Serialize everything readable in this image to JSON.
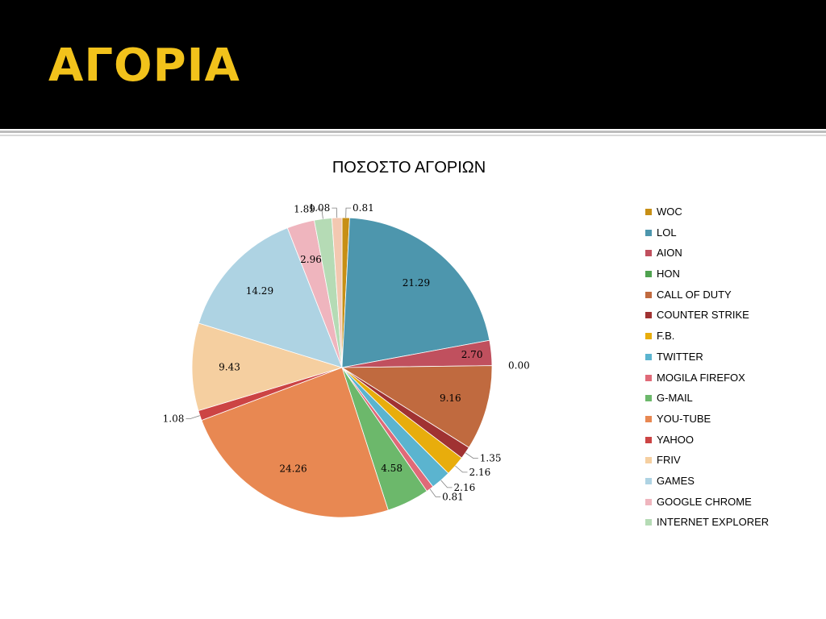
{
  "slide": {
    "title": "ΑΓΟΡΙΑ"
  },
  "chart_data": {
    "type": "pie",
    "title": "ΠΟΣΟΣΤΟ ΑΓΟΡΙΩΝ",
    "legend_position": "right",
    "slices": [
      {
        "name": "WOC",
        "value": 0.81,
        "label": "0.81",
        "color": "#c78f15"
      },
      {
        "name": "LOL",
        "value": 21.29,
        "label": "21.29",
        "color": "#4d96ad"
      },
      {
        "name": "AION",
        "value": 2.7,
        "label": "2.70",
        "color": "#c0505e"
      },
      {
        "name": "HON",
        "value": 0.0,
        "label": "0.00",
        "color": "#4fa24f"
      },
      {
        "name": "CALL OF DUTY",
        "value": 9.16,
        "label": "9.16",
        "color": "#c06a3f"
      },
      {
        "name": "COUNTER STRIKE",
        "value": 1.35,
        "label": "1.35",
        "color": "#a03232"
      },
      {
        "name": "F.B.",
        "value": 2.16,
        "label": "2.16",
        "color": "#e8ad0c"
      },
      {
        "name": "TWITTER",
        "value": 2.16,
        "label": "2.16",
        "color": "#5bb4cf"
      },
      {
        "name": "MOGILA FIREFOX",
        "value": 0.81,
        "label": "0.81",
        "color": "#e06a78"
      },
      {
        "name": "G-MAIL",
        "value": 4.58,
        "label": "4.58",
        "color": "#6cb86b"
      },
      {
        "name": "YOU-TUBE",
        "value": 24.26,
        "label": "24.26",
        "color": "#e88852"
      },
      {
        "name": "YAHOO",
        "value": 1.08,
        "label": "1.08",
        "color": "#cc4444"
      },
      {
        "name": "FRIV",
        "value": 9.43,
        "label": "9.43",
        "color": "#f5cfa0"
      },
      {
        "name": "GAMES",
        "value": 14.29,
        "label": "14.29",
        "color": "#aed3e3"
      },
      {
        "name": "GOOGLE CHROME",
        "value": 2.96,
        "label": "2.96",
        "color": "#efb5be"
      },
      {
        "name": "INTERNET EXPLORER",
        "value": 1.89,
        "label": "1.89",
        "color": "#b5dbb5"
      },
      {
        "name": "",
        "value": 1.08,
        "label": "1.08",
        "color": "#f3c8b1"
      }
    ]
  }
}
